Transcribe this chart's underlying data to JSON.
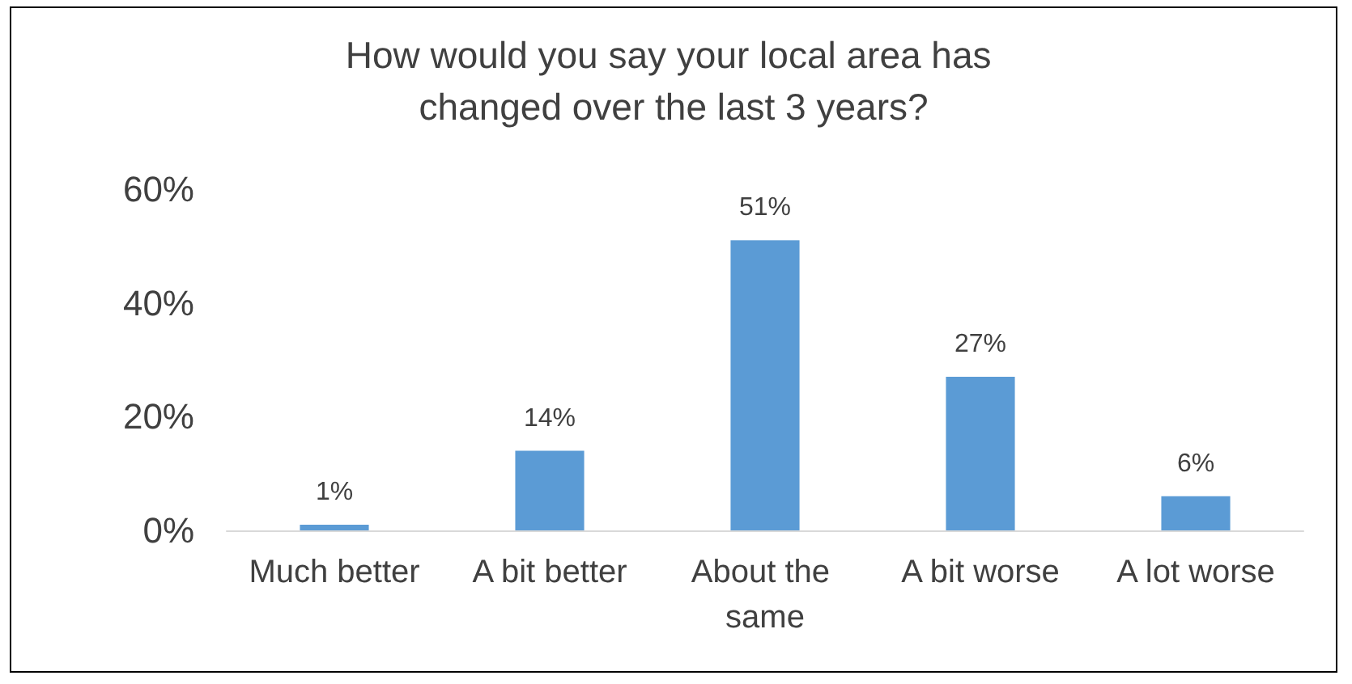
{
  "chart_data": {
    "type": "bar",
    "title": "How would you say your local area has changed over the last 3 years?",
    "categories": [
      "Much better",
      "A bit better",
      "About the same",
      "A bit worse",
      "A lot worse"
    ],
    "values": [
      1,
      14,
      51,
      27,
      6
    ],
    "value_labels": [
      "1%",
      "14%",
      "51%",
      "27%",
      "6%"
    ],
    "color": "#5b9bd5",
    "ylim": [
      0,
      60
    ],
    "yticks": [
      {
        "value": 0,
        "label": "0%"
      },
      {
        "value": 20,
        "label": "20%"
      },
      {
        "value": 40,
        "label": "40%"
      },
      {
        "value": 60,
        "label": "60%"
      }
    ],
    "grid": false
  }
}
